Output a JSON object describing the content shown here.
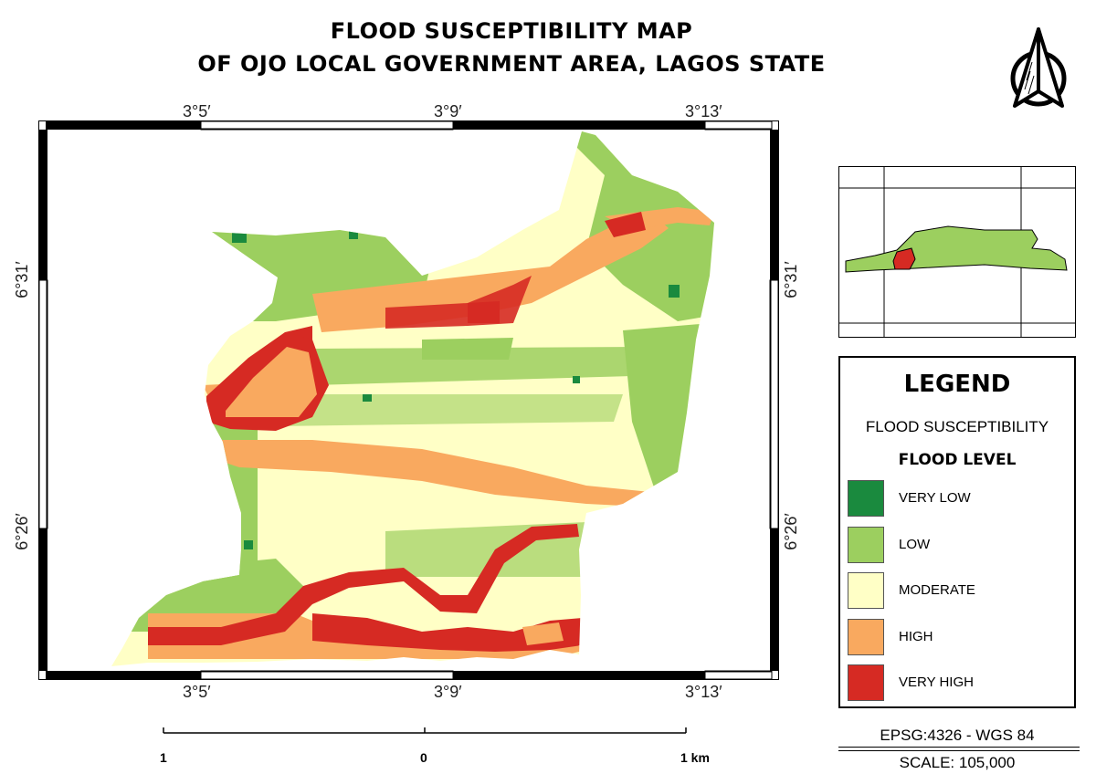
{
  "title": {
    "line1": "FLOOD SUSCEPTIBILITY MAP",
    "line2": "OF OJO LOCAL GOVERNMENT AREA, LAGOS STATE"
  },
  "map": {
    "lon_labels": [
      "3°5′",
      "3°9′",
      "3°13′"
    ],
    "lat_labels": [
      "6°31′",
      "6°26′"
    ]
  },
  "legend": {
    "title": "LEGEND",
    "subtitle": "FLOOD SUSCEPTIBILITY",
    "level_title": "FLOOD LEVEL",
    "items": [
      {
        "label": "VERY LOW",
        "color": "#1a8a3e"
      },
      {
        "label": "LOW",
        "color": "#9ccf5f"
      },
      {
        "label": "MODERATE",
        "color": "#ffffc6"
      },
      {
        "label": "HIGH",
        "color": "#f9a95f"
      },
      {
        "label": "VERY HIGH",
        "color": "#d62a23"
      }
    ]
  },
  "scalebar": {
    "left_label": "1",
    "mid_label": "0",
    "right_label": "1 km"
  },
  "footer": {
    "epsg": "EPSG:4326 - WGS 84",
    "scale": "SCALE: 105,000"
  },
  "north_arrow": {
    "icon": "north-arrow-icon"
  }
}
